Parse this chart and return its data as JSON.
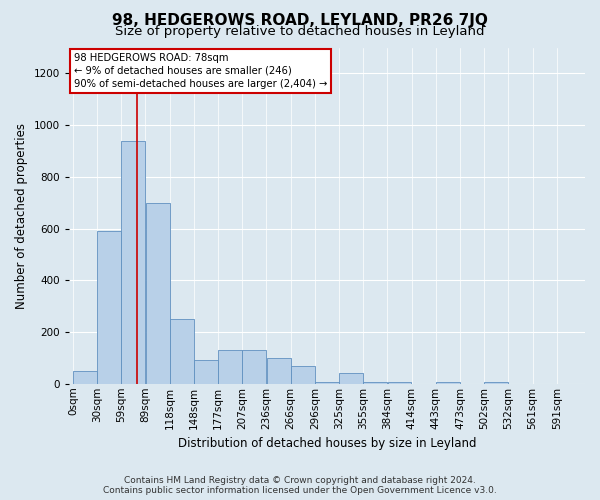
{
  "title": "98, HEDGEROWS ROAD, LEYLAND, PR26 7JQ",
  "subtitle": "Size of property relative to detached houses in Leyland",
  "xlabel": "Distribution of detached houses by size in Leyland",
  "ylabel": "Number of detached properties",
  "footer_line1": "Contains HM Land Registry data © Crown copyright and database right 2024.",
  "footer_line2": "Contains public sector information licensed under the Open Government Licence v3.0.",
  "annotation_line1": "98 HEDGEROWS ROAD: 78sqm",
  "annotation_line2": "← 9% of detached houses are smaller (246)",
  "annotation_line3": "90% of semi-detached houses are larger (2,404) →",
  "bin_labels": [
    "0sqm",
    "30sqm",
    "59sqm",
    "89sqm",
    "118sqm",
    "148sqm",
    "177sqm",
    "207sqm",
    "236sqm",
    "266sqm",
    "296sqm",
    "325sqm",
    "355sqm",
    "384sqm",
    "414sqm",
    "443sqm",
    "473sqm",
    "502sqm",
    "532sqm",
    "561sqm",
    "591sqm"
  ],
  "bar_heights": [
    50,
    590,
    940,
    700,
    250,
    90,
    130,
    130,
    100,
    70,
    5,
    40,
    5,
    5,
    0,
    5,
    0,
    5,
    0,
    0,
    0
  ],
  "bar_color": "#b8d0e8",
  "bar_edge_color": "#6090c0",
  "vline_color": "#cc0000",
  "vline_bin": 2,
  "ylim": [
    0,
    1300
  ],
  "yticks": [
    0,
    200,
    400,
    600,
    800,
    1000,
    1200
  ],
  "bg_color": "#dce8f0",
  "annotation_box_edge": "#cc0000",
  "title_fontsize": 11,
  "subtitle_fontsize": 9.5,
  "label_fontsize": 8.5,
  "tick_fontsize": 7.5,
  "footer_fontsize": 6.5
}
